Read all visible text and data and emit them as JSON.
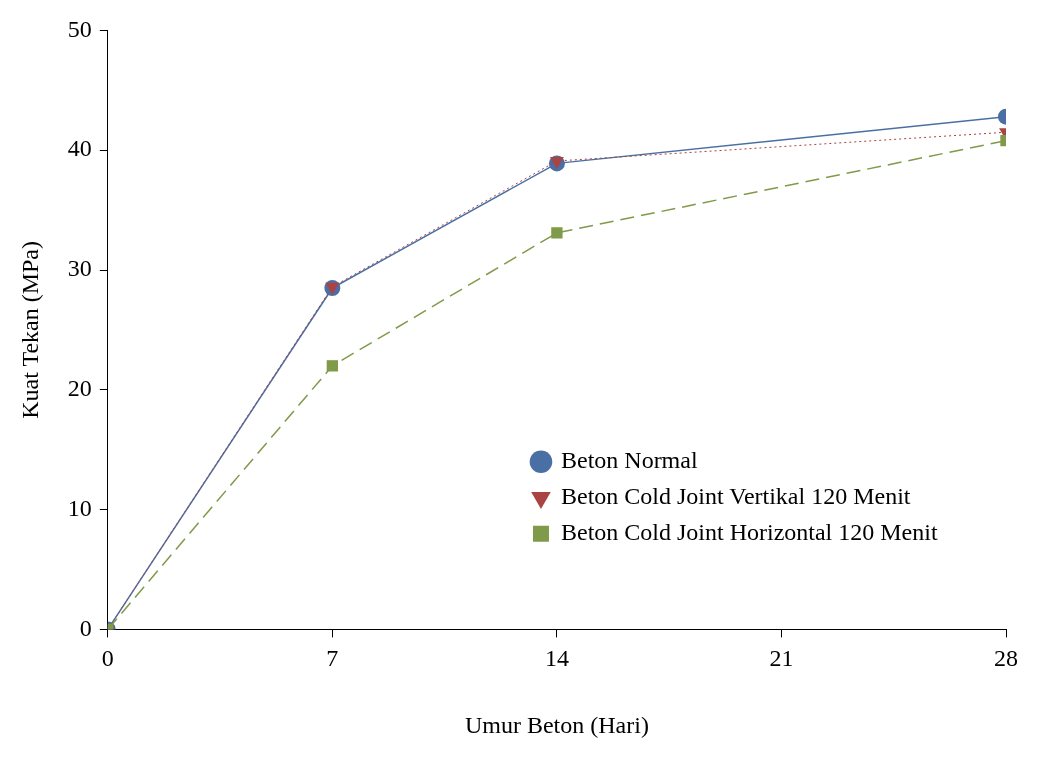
{
  "chart_data": {
    "type": "line",
    "xlabel": "Umur Beton (Hari)",
    "ylabel": "Kuat Tekan (MPa)",
    "x": [
      0,
      7,
      14,
      28
    ],
    "xlim": [
      0,
      28
    ],
    "xticks": [
      0,
      7,
      14,
      21,
      28
    ],
    "ylim": [
      0,
      50
    ],
    "yticks": [
      0,
      10,
      20,
      30,
      40,
      50
    ],
    "grid": false,
    "legend": "right",
    "series": [
      {
        "name": "Beton Normal",
        "color": "#4a6fa5",
        "values": [
          0,
          28.5,
          38.9,
          42.8
        ],
        "marker": "circle",
        "line_style": "solid"
      },
      {
        "name": "Beton Cold Joint Vertikal 120 Menit",
        "color": "#a94442",
        "values": [
          0,
          28.6,
          39.1,
          41.5
        ],
        "marker": "triangle",
        "line_style": "dotted"
      },
      {
        "name": "Beton Cold Joint Horizontal 120 Menit",
        "color": "#7f9a48",
        "values": [
          0,
          22.0,
          33.1,
          40.8
        ],
        "marker": "square",
        "line_style": "dashed"
      }
    ]
  }
}
